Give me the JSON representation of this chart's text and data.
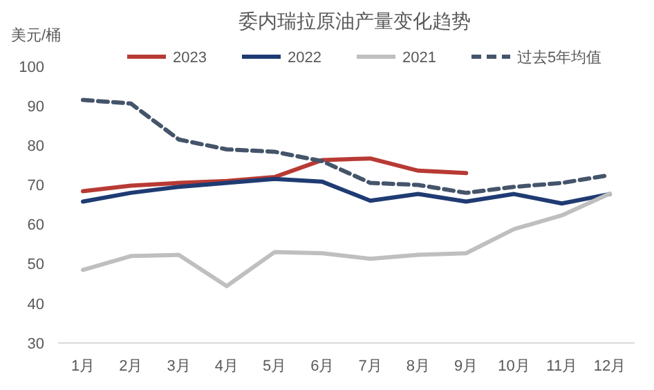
{
  "chart_data": {
    "type": "line",
    "title": "委内瑞拉原油产量变化趋势",
    "ylabel": "美元/桶",
    "categories": [
      "1月",
      "2月",
      "3月",
      "4月",
      "5月",
      "6月",
      "7月",
      "8月",
      "9月",
      "10月",
      "11月",
      "12月"
    ],
    "series": [
      {
        "name": "2023",
        "color": "#b83a34",
        "line_style": "solid",
        "values": [
          68.4,
          69.8,
          70.5,
          71,
          72,
          76.3,
          76.7,
          73.6,
          73,
          null,
          null,
          null
        ]
      },
      {
        "name": "2022",
        "color": "#1f3b73",
        "line_style": "solid",
        "values": [
          65.8,
          68,
          69.5,
          70.5,
          71.5,
          70.8,
          66,
          67.7,
          65.8,
          67.7,
          65.3,
          67.7
        ]
      },
      {
        "name": "2021",
        "color": "#bfbfbf",
        "line_style": "solid",
        "values": [
          48.5,
          52,
          52.3,
          44.4,
          53,
          52.7,
          51.3,
          52.3,
          52.7,
          58.8,
          62.3,
          67.8
        ]
      },
      {
        "name": "过去5年均值",
        "color": "#44546a",
        "line_style": "dashed",
        "values": [
          91.5,
          90.6,
          81.5,
          79,
          78.4,
          76,
          70.5,
          70,
          68,
          69.5,
          70.5,
          72.5
        ]
      }
    ],
    "ylim": [
      30,
      100
    ],
    "yticks": [
      30,
      40,
      50,
      60,
      70,
      80,
      90,
      100
    ],
    "grid": false,
    "legend": "top",
    "marker": "none"
  }
}
